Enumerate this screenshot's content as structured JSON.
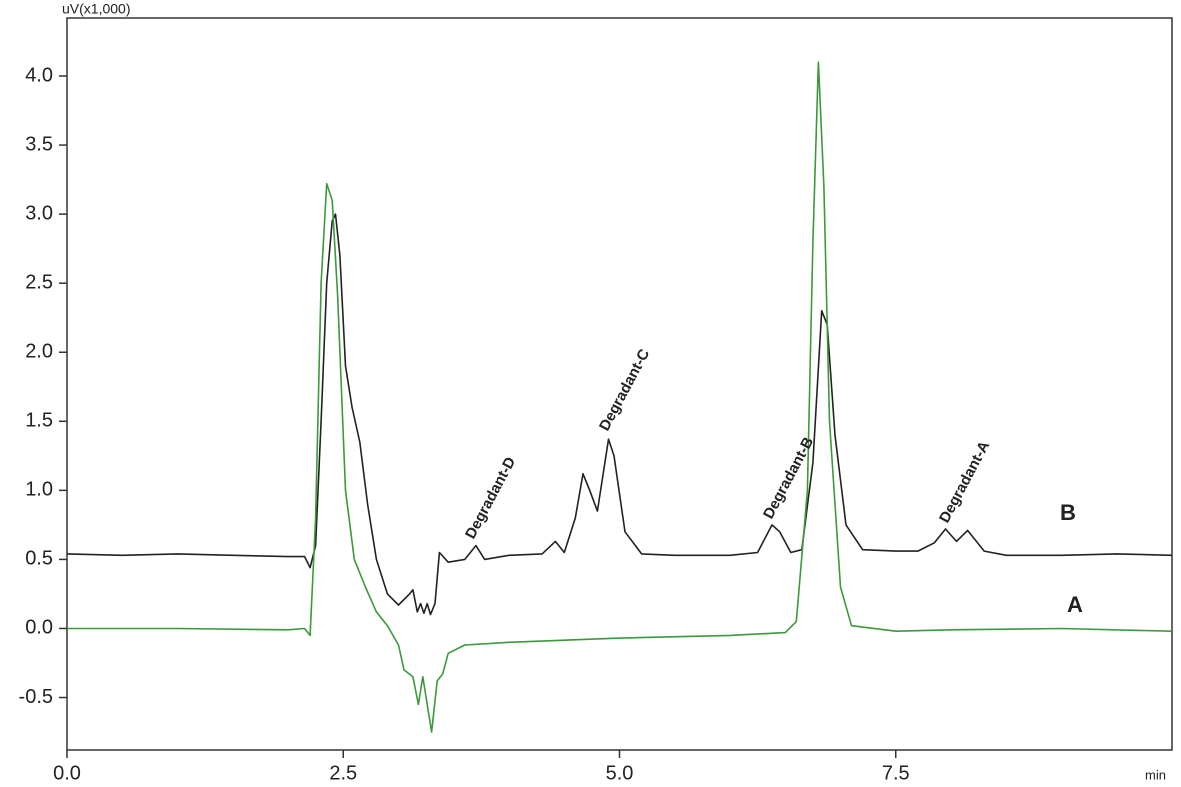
{
  "chart_data": {
    "type": "line",
    "y_label": "uV(x1,000)",
    "x_label": "min",
    "xlim": [
      0,
      10
    ],
    "ylim": [
      -0.88,
      4.42
    ],
    "xticks": [
      {
        "value": 0,
        "label": "0.0"
      },
      2.5,
      {
        "value": 5,
        "label": "5.0"
      },
      7.5
    ],
    "yticks": [
      -0.5,
      {
        "value": 0,
        "label": "0.0"
      },
      0.5,
      {
        "value": 1,
        "label": "1.0"
      },
      1.5,
      {
        "value": 2,
        "label": "2.0"
      },
      2.5,
      {
        "value": 3,
        "label": "3.0"
      },
      3.5,
      {
        "value": 4,
        "label": "4.0"
      }
    ],
    "annotations": [
      "Degradant-D",
      "Degradant-C",
      "Degradant-B",
      "Degradant-A"
    ],
    "series": [
      {
        "name": "B",
        "color": "#222222",
        "x": [
          0,
          0.5,
          1.0,
          1.5,
          2.0,
          2.15,
          2.2,
          2.25,
          2.3,
          2.35,
          2.4,
          2.43,
          2.47,
          2.52,
          2.58,
          2.65,
          2.72,
          2.8,
          2.9,
          3.0,
          3.1,
          3.13,
          3.17,
          3.2,
          3.23,
          3.26,
          3.29,
          3.33,
          3.37,
          3.45,
          3.6,
          3.7,
          3.78,
          4.0,
          4.3,
          4.42,
          4.5,
          4.6,
          4.67,
          4.73,
          4.8,
          4.9,
          4.95,
          5.05,
          5.2,
          5.5,
          6.0,
          6.25,
          6.38,
          6.45,
          6.55,
          6.65,
          6.75,
          6.83,
          6.88,
          6.95,
          7.05,
          7.2,
          7.5,
          7.7,
          7.85,
          7.95,
          8.05,
          8.15,
          8.3,
          8.5,
          9.0,
          9.5,
          10
        ],
        "values": [
          0.54,
          0.53,
          0.54,
          0.53,
          0.52,
          0.52,
          0.44,
          0.6,
          1.5,
          2.5,
          2.95,
          3.0,
          2.7,
          1.9,
          1.6,
          1.35,
          0.9,
          0.5,
          0.25,
          0.17,
          0.25,
          0.28,
          0.12,
          0.18,
          0.11,
          0.18,
          0.1,
          0.18,
          0.55,
          0.48,
          0.5,
          0.6,
          0.5,
          0.53,
          0.54,
          0.63,
          0.55,
          0.8,
          1.12,
          1.0,
          0.85,
          1.37,
          1.25,
          0.7,
          0.54,
          0.53,
          0.53,
          0.55,
          0.75,
          0.7,
          0.55,
          0.57,
          1.2,
          2.3,
          2.2,
          1.4,
          0.75,
          0.57,
          0.56,
          0.56,
          0.62,
          0.72,
          0.63,
          0.71,
          0.56,
          0.53,
          0.53,
          0.54,
          0.53
        ]
      },
      {
        "name": "A",
        "color": "#3a9a3a",
        "x": [
          0,
          1.0,
          2.0,
          2.15,
          2.2,
          2.25,
          2.3,
          2.35,
          2.4,
          2.45,
          2.52,
          2.6,
          2.7,
          2.8,
          2.9,
          3.0,
          3.05,
          3.13,
          3.18,
          3.22,
          3.25,
          3.3,
          3.35,
          3.4,
          3.45,
          3.6,
          4.0,
          5.0,
          6.0,
          6.5,
          6.6,
          6.7,
          6.75,
          6.8,
          6.85,
          6.9,
          7.0,
          7.1,
          7.5,
          8.0,
          9.0,
          10
        ],
        "values": [
          0,
          0,
          -0.01,
          0.0,
          -0.05,
          0.8,
          2.5,
          3.22,
          3.1,
          2.4,
          1.0,
          0.5,
          0.3,
          0.12,
          0.02,
          -0.12,
          -0.3,
          -0.35,
          -0.55,
          -0.35,
          -0.5,
          -0.75,
          -0.38,
          -0.33,
          -0.18,
          -0.12,
          -0.1,
          -0.07,
          -0.05,
          -0.03,
          0.05,
          1.0,
          2.8,
          4.1,
          3.2,
          1.5,
          0.3,
          0.02,
          -0.02,
          -0.01,
          0.0,
          -0.02
        ]
      }
    ]
  }
}
